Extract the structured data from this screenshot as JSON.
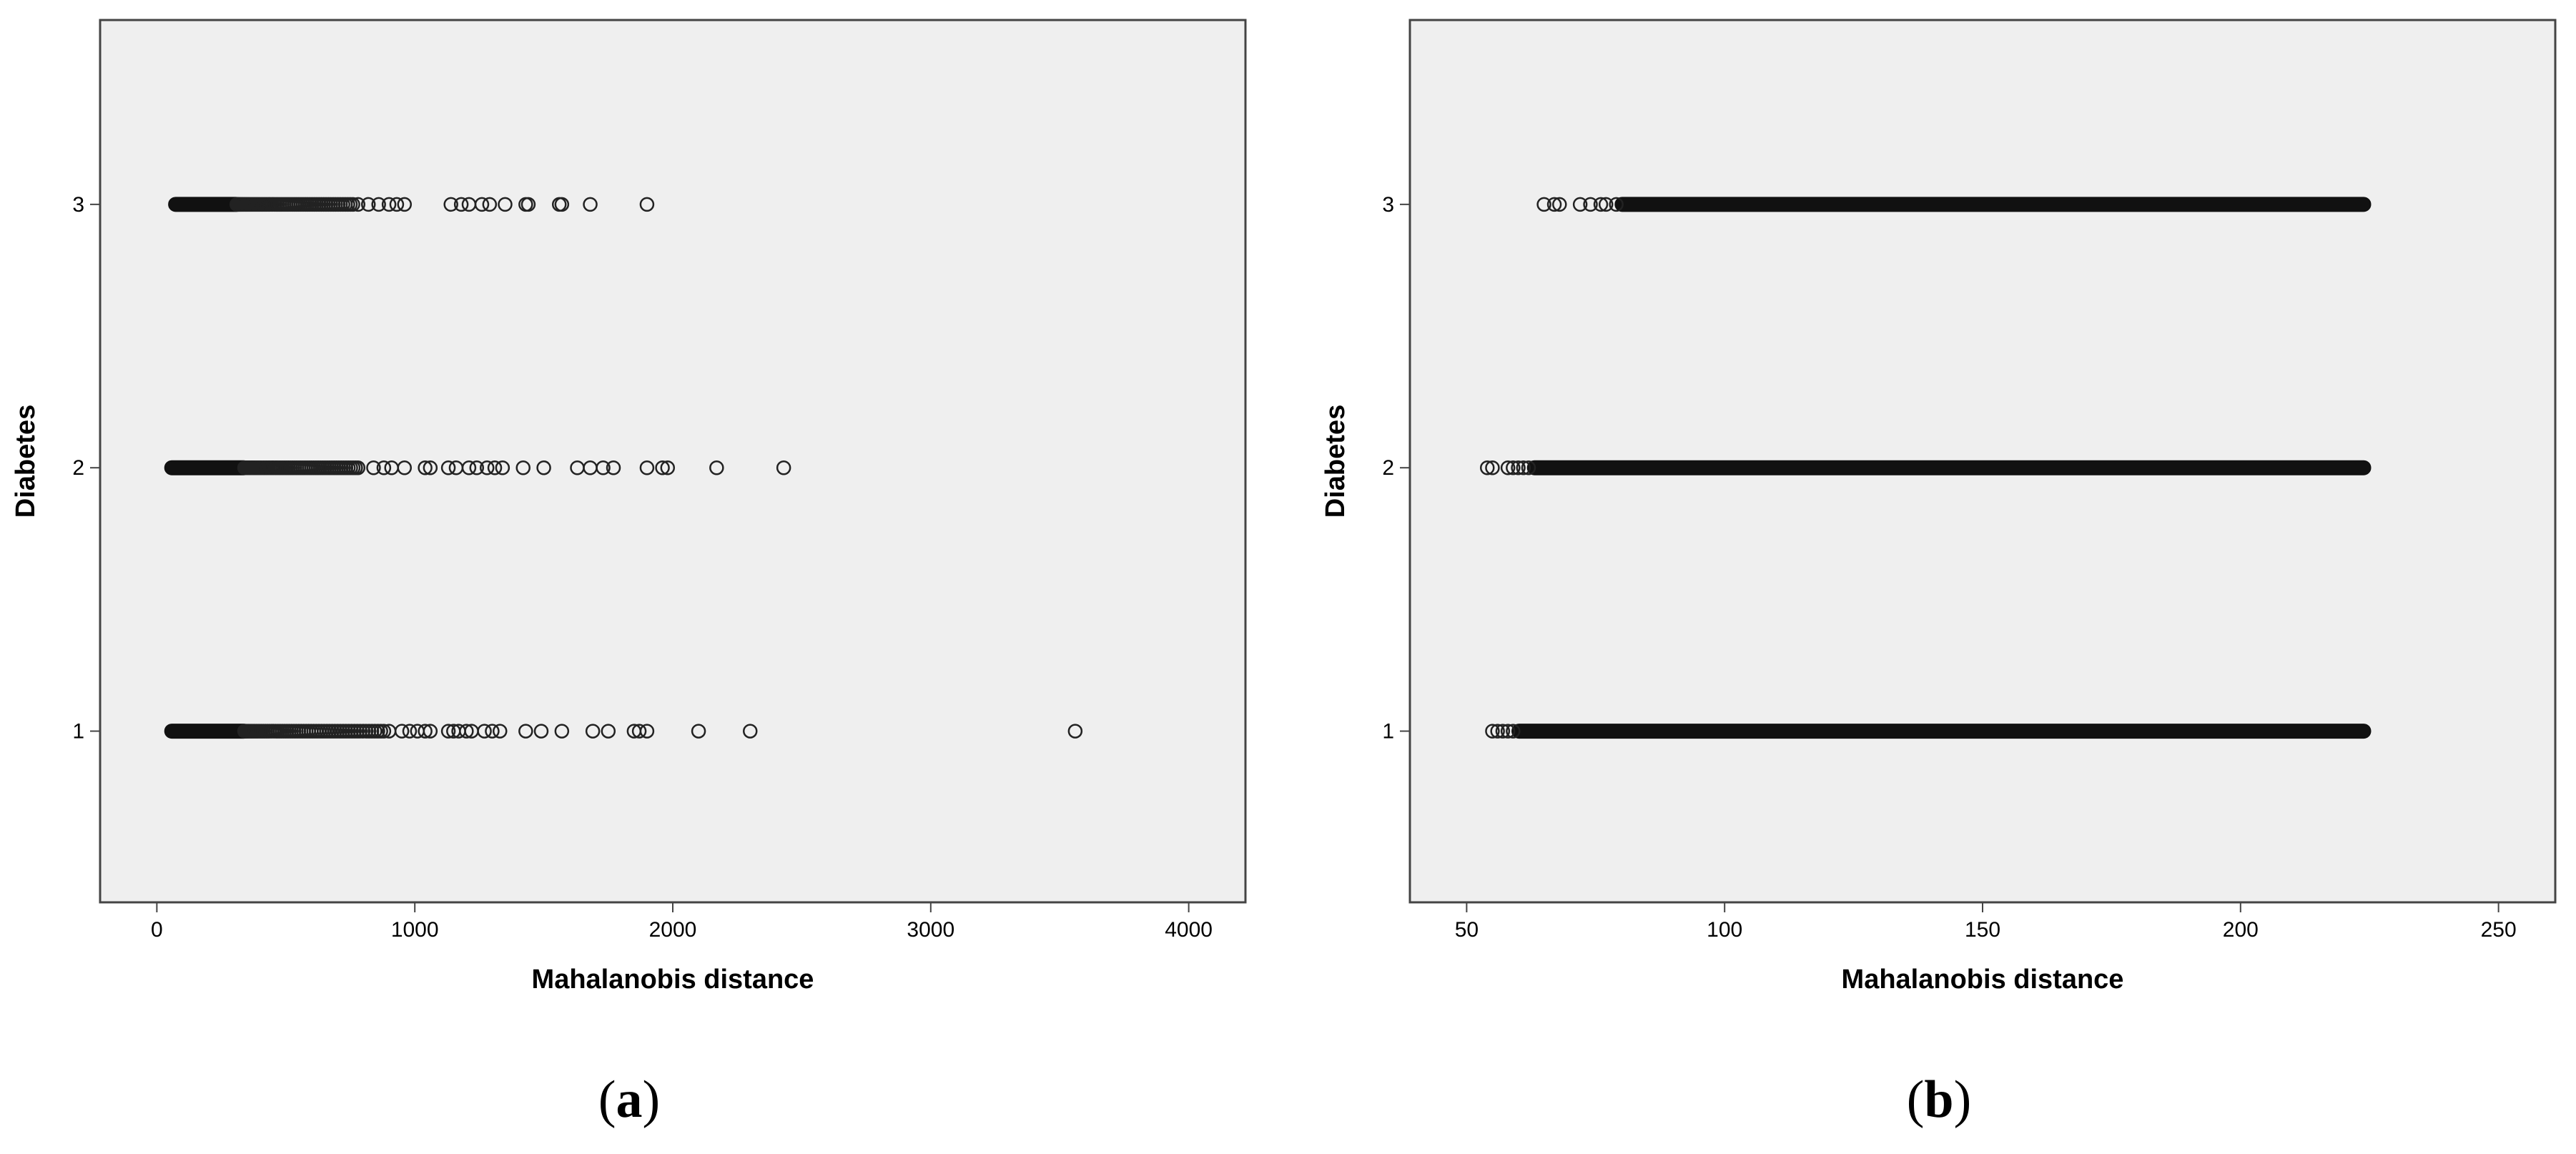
{
  "panels": [
    {
      "caption_open": "(",
      "caption_letter": "a",
      "caption_close": ")"
    },
    {
      "caption_open": "(",
      "caption_letter": "b",
      "caption_close": ")"
    }
  ],
  "colors": {
    "plot_background": "#efefef",
    "frame": "#444444",
    "marker_stroke": "#222222",
    "text": "#000000"
  },
  "chart_data": [
    {
      "type": "scatter",
      "xlabel": "Mahalanobis distance",
      "ylabel": "Diabetes",
      "xlim": [
        -220,
        4220
      ],
      "ylim": [
        0.35,
        3.7
      ],
      "x_ticks": [
        0,
        1000,
        2000,
        3000,
        4000
      ],
      "y_ticks": [
        1,
        2,
        3
      ],
      "marker": "open-circle",
      "grid": false,
      "series": [
        {
          "y": 3,
          "x_dense_range": [
            70,
            310
          ],
          "x_medium_range": [
            310,
            760
          ],
          "x": [
            780,
            820,
            860,
            900,
            930,
            960,
            1140,
            1180,
            1210,
            1260,
            1290,
            1350,
            1430,
            1440,
            1560,
            1570,
            1680,
            1900
          ]
        },
        {
          "y": 2,
          "x_dense_range": [
            55,
            340
          ],
          "x_medium_range": [
            340,
            780
          ],
          "x": [
            840,
            880,
            910,
            960,
            1040,
            1060,
            1130,
            1160,
            1210,
            1240,
            1280,
            1310,
            1340,
            1420,
            1500,
            1630,
            1680,
            1730,
            1770,
            1900,
            1960,
            1980,
            2170,
            2430
          ]
        },
        {
          "y": 1,
          "x_dense_range": [
            55,
            340
          ],
          "x_medium_range": [
            340,
            880
          ],
          "x": [
            900,
            950,
            980,
            1010,
            1040,
            1060,
            1130,
            1150,
            1170,
            1200,
            1220,
            1270,
            1300,
            1330,
            1430,
            1490,
            1570,
            1690,
            1750,
            1850,
            1870,
            1900,
            2100,
            2300,
            3560
          ]
        }
      ]
    },
    {
      "type": "scatter",
      "xlabel": "Mahalanobis distance",
      "ylabel": "Diabetes",
      "xlim": [
        39,
        261
      ],
      "ylim": [
        0.35,
        3.7
      ],
      "x_ticks": [
        50,
        100,
        150,
        200,
        250
      ],
      "y_ticks": [
        1,
        2,
        3
      ],
      "marker": "open-circle",
      "grid": false,
      "series": [
        {
          "y": 3,
          "x_dense_range": [
            80,
            224
          ],
          "x": [
            65,
            67,
            68,
            72,
            74,
            76,
            77,
            79
          ]
        },
        {
          "y": 2,
          "x_dense_range": [
            63,
            224
          ],
          "x": [
            54,
            55,
            58,
            59,
            60,
            61,
            62
          ]
        },
        {
          "y": 1,
          "x_dense_range": [
            60,
            224
          ],
          "x": [
            55,
            56,
            57,
            58,
            59
          ]
        }
      ]
    }
  ]
}
